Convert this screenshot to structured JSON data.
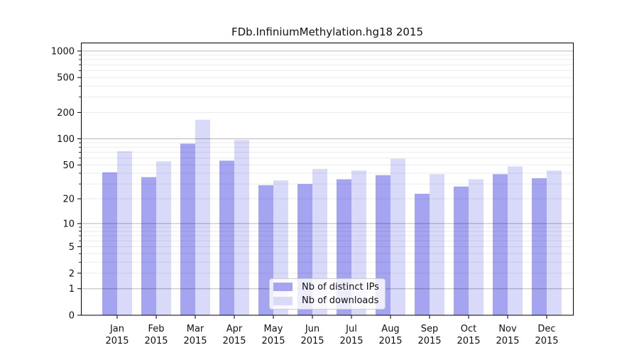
{
  "chart_data": {
    "type": "bar",
    "title": "FDb.InfiniumMethylation.hg18 2015",
    "categories": [
      "Jan",
      "Feb",
      "Mar",
      "Apr",
      "May",
      "Jun",
      "Jul",
      "Aug",
      "Sep",
      "Oct",
      "Nov",
      "Dec"
    ],
    "category_year": "2015",
    "series": [
      {
        "name": "Nb of distinct IPs",
        "color": "#a4a4f1",
        "values": [
          41,
          36,
          88,
          56,
          29,
          30,
          34,
          38,
          23,
          28,
          39,
          35
        ]
      },
      {
        "name": "Nb of downloads",
        "color": "#d9d9fa",
        "values": [
          72,
          55,
          165,
          97,
          33,
          45,
          43,
          59,
          39,
          34,
          48,
          43
        ]
      }
    ],
    "y_scale": "log1p",
    "y_ticks": [
      0,
      1,
      2,
      5,
      10,
      20,
      50,
      100,
      200,
      500,
      1000
    ],
    "y_major_gridlines": [
      1,
      10,
      100,
      1000
    ],
    "y_minor_gridlines": [
      2,
      3,
      4,
      5,
      6,
      7,
      8,
      9,
      20,
      30,
      40,
      50,
      60,
      70,
      80,
      90,
      200,
      300,
      400,
      500,
      600,
      700,
      800,
      900
    ],
    "ylim": [
      0,
      1250
    ],
    "xlabel": "",
    "ylabel": "",
    "grid": true,
    "legend_position": "lower center"
  }
}
